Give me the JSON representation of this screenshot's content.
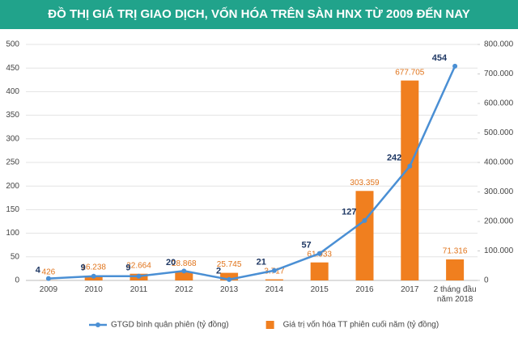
{
  "chart_data": {
    "type": "bar-line",
    "title": "ĐỒ THỊ GIÁ TRỊ GIAO DỊCH, VỐN HÓA TRÊN SÀN HNX TỪ 2009 ĐẾN NAY",
    "categories": [
      "2009",
      "2010",
      "2011",
      "2012",
      "2013",
      "2014",
      "2015",
      "2016",
      "2017",
      "2 tháng đầu năm 2018"
    ],
    "series": [
      {
        "name": "GTGD bình quân phiên (tỷ đồng)",
        "type": "line",
        "color": "#4a8fd4",
        "values": [
          4,
          9,
          9,
          20,
          2,
          21,
          57,
          127,
          242,
          454
        ]
      },
      {
        "name": "Giá trị vốn hóa TT phiên cuối năm (tỷ đồng)",
        "type": "bar",
        "axis": "y2",
        "color": "#f07f1f",
        "values": [
          426,
          16238,
          22664,
          28868,
          25745,
          3717,
          61033,
          303359,
          677705,
          71316
        ],
        "value_labels": [
          "426",
          "16.238",
          "22.664",
          "28.868",
          "25.745",
          "3.717",
          "61.033",
          "303.359",
          "677.705",
          "71.316"
        ]
      }
    ],
    "ylim": [
      0,
      500
    ],
    "yticks": [
      0,
      50,
      100,
      150,
      200,
      250,
      300,
      350,
      400,
      450,
      500
    ],
    "y2lim": [
      0,
      800000
    ],
    "y2ticks": [
      0,
      {
        "value": 100000,
        "label": "100.000"
      },
      {
        "value": 200000,
        "label": "200.000"
      },
      {
        "value": 300000,
        "label": "300.000"
      },
      {
        "value": 400000,
        "label": "400.000"
      },
      {
        "value": 500000,
        "label": "500.000"
      },
      {
        "value": 600000,
        "label": "600.000"
      },
      {
        "value": 700000,
        "label": "700.000"
      },
      {
        "value": 800000,
        "label": "800.000"
      }
    ],
    "grid": true
  }
}
